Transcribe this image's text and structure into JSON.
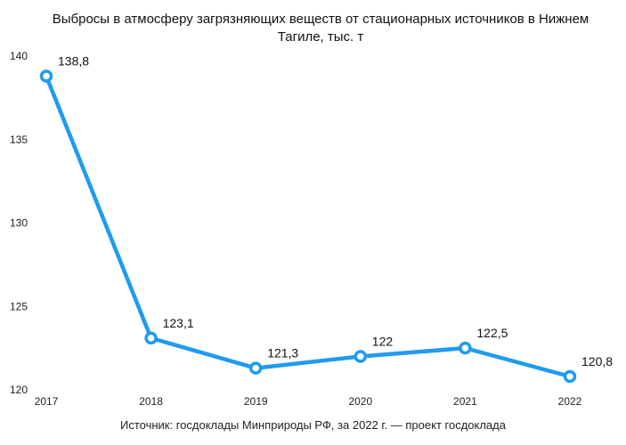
{
  "chart_data": {
    "type": "line",
    "title": "Выбросы в атмосферу загрязняющих веществ от стационарных источников в Нижнем Тагиле, тыс. т",
    "xlabel": "",
    "ylabel": "",
    "categories": [
      "2017",
      "2018",
      "2019",
      "2020",
      "2021",
      "2022"
    ],
    "series": [
      {
        "values": [
          138.8,
          123.1,
          121.3,
          122,
          122.5,
          120.8
        ],
        "labels": [
          "138,8",
          "123,1",
          "121,3",
          "122",
          "122,5",
          "120,8"
        ],
        "color": "#1f9bf0"
      }
    ],
    "ylim": [
      120,
      140
    ],
    "yticks": [
      "120",
      "125",
      "130",
      "135",
      "140"
    ],
    "grid": false,
    "legend": "none"
  },
  "source_note": "Источник: госдоклады Минприроды РФ, за 2022 г. — проект госдоклада"
}
